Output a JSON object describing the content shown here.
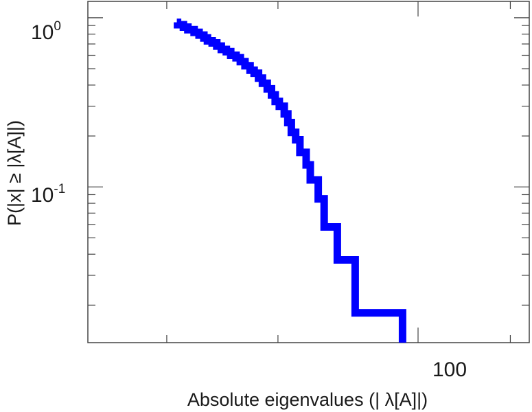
{
  "chart_data": {
    "type": "line",
    "title": "",
    "xlabel": "Absolute eigenvalues (|      λ[A]|)",
    "ylabel": "P(|x| ≥ |λ[A]|)",
    "x_scale": "log",
    "y_scale": "log",
    "xlim": [
      30,
      150
    ],
    "ylim": [
      0.012,
      1.25
    ],
    "grid": false,
    "legend": "none",
    "series_color": "#0000ff",
    "x_tick_labels": [
      {
        "value": 100,
        "label": "100"
      }
    ],
    "y_tick_labels": [
      {
        "value": 1,
        "base": "10",
        "exp": "0"
      },
      {
        "value": 0.1,
        "base": "10",
        "exp": "-1"
      }
    ],
    "series": [
      {
        "x": [
          41.5,
          41.6,
          42.5,
          43.2,
          44.2,
          45.0,
          45.8,
          46.4,
          47.2,
          48.0,
          48.8,
          49.7,
          50.5,
          51.5,
          52.3,
          53.2,
          54.2,
          55.0,
          55.9,
          56.7,
          57.7,
          58.6,
          59.4,
          60.3,
          61.4,
          62.2,
          63.0,
          64.0,
          65.0,
          66.5,
          67.5,
          69.5,
          71.0,
          74.5,
          79.5,
          94.5
        ],
        "y": [
          0.94,
          0.91,
          0.88,
          0.85,
          0.82,
          0.79,
          0.76,
          0.73,
          0.71,
          0.68,
          0.65,
          0.63,
          0.6,
          0.58,
          0.55,
          0.52,
          0.49,
          0.47,
          0.44,
          0.41,
          0.38,
          0.35,
          0.32,
          0.3,
          0.27,
          0.24,
          0.21,
          0.19,
          0.16,
          0.135,
          0.11,
          0.085,
          0.058,
          0.037,
          0.018,
          0.012
        ]
      }
    ]
  }
}
